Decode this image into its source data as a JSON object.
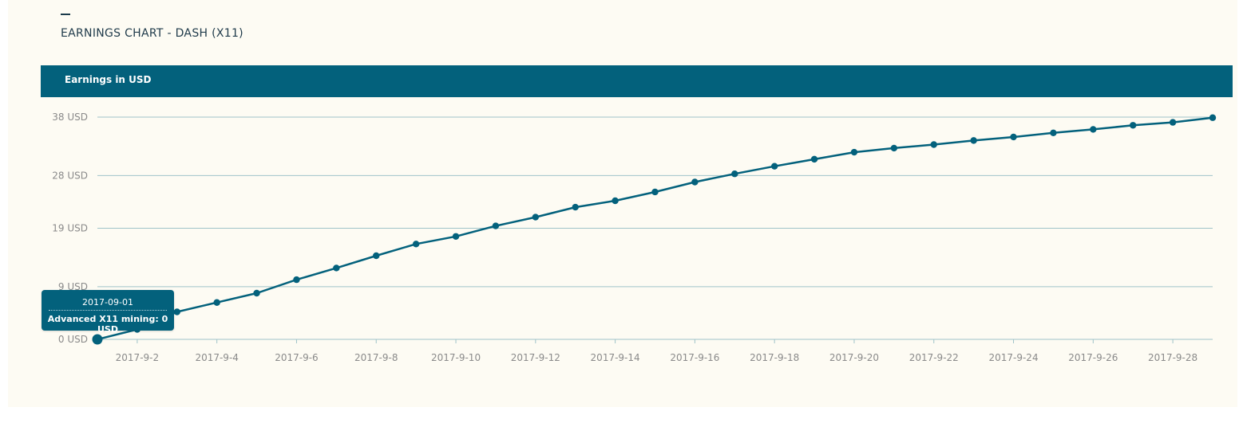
{
  "page": {
    "title": "EARNINGS CHART - DASH (X11)",
    "header_label": "Earnings in USD"
  },
  "tooltip": {
    "date": "2017-09-01",
    "label": "Advanced X11 mining: 0 USD"
  },
  "colors": {
    "accent": "#03617c",
    "panel_background": "#fdfbf3",
    "grid": "#9fc3c8",
    "axis_text": "#8a8a8a"
  },
  "chart_data": {
    "type": "line",
    "title": "Earnings in USD",
    "xlabel": "",
    "ylabel": "",
    "grid": true,
    "y_ticks": [
      0,
      9,
      19,
      28,
      38
    ],
    "y_tick_labels": [
      "0 USD",
      "9 USD",
      "19 USD",
      "28 USD",
      "38 USD"
    ],
    "ylim": [
      0,
      38
    ],
    "x_tick_labels": [
      "2017-9-2",
      "2017-9-4",
      "2017-9-6",
      "2017-9-8",
      "2017-9-10",
      "2017-9-12",
      "2017-9-14",
      "2017-9-16",
      "2017-9-18",
      "2017-9-20",
      "2017-9-22",
      "2017-9-24",
      "2017-9-26",
      "2017-9-28"
    ],
    "x": [
      "2017-09-01",
      "2017-09-02",
      "2017-09-03",
      "2017-09-04",
      "2017-09-05",
      "2017-09-06",
      "2017-09-07",
      "2017-09-08",
      "2017-09-09",
      "2017-09-10",
      "2017-09-11",
      "2017-09-12",
      "2017-09-13",
      "2017-09-14",
      "2017-09-15",
      "2017-09-16",
      "2017-09-17",
      "2017-09-18",
      "2017-09-19",
      "2017-09-20",
      "2017-09-21",
      "2017-09-22",
      "2017-09-23",
      "2017-09-24",
      "2017-09-25",
      "2017-09-26",
      "2017-09-27",
      "2017-09-28",
      "2017-09-29"
    ],
    "series": [
      {
        "name": "Advanced X11 mining",
        "values": [
          0,
          1.7,
          4.7,
          6.3,
          7.9,
          10.2,
          12.2,
          14.3,
          16.3,
          17.6,
          19.4,
          20.9,
          22.6,
          23.7,
          25.2,
          26.9,
          28.3,
          29.6,
          30.8,
          32.0,
          32.7,
          33.3,
          34.0,
          34.6,
          35.3,
          35.9,
          36.6,
          37.1,
          37.9
        ]
      }
    ]
  }
}
